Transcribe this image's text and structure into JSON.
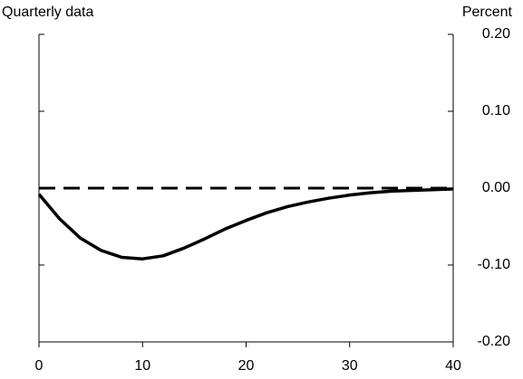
{
  "chart_data": {
    "type": "line",
    "subtitle_left": "Quarterly data",
    "y_axis_label": "Percent",
    "x": [
      0,
      2,
      4,
      6,
      8,
      10,
      12,
      14,
      16,
      18,
      20,
      22,
      24,
      26,
      28,
      30,
      32,
      34,
      36,
      38,
      40
    ],
    "series": [
      {
        "color": "#000000",
        "values": [
          -0.008,
          -0.04,
          -0.065,
          -0.081,
          -0.09,
          -0.092,
          -0.088,
          -0.078,
          -0.066,
          -0.053,
          -0.042,
          -0.032,
          -0.024,
          -0.018,
          -0.013,
          -0.009,
          -0.006,
          -0.004,
          -0.003,
          -0.002,
          -0.001
        ]
      }
    ],
    "hlines": [
      {
        "value": 0,
        "color": "#000000",
        "style": "dashed"
      }
    ],
    "xlim": [
      0,
      40
    ],
    "xticks": [
      0,
      10,
      20,
      30,
      40
    ],
    "ylim": [
      -0.2,
      0.2
    ],
    "yticks": [
      {
        "value": -0.2,
        "label": "-0.20"
      },
      {
        "value": -0.1,
        "label": "-0.10"
      },
      {
        "value": 0,
        "label": "0.00"
      },
      {
        "value": 0.1,
        "label": "0.10"
      },
      {
        "value": 0.2,
        "label": "0.20"
      }
    ],
    "y_axis_side": "right"
  }
}
